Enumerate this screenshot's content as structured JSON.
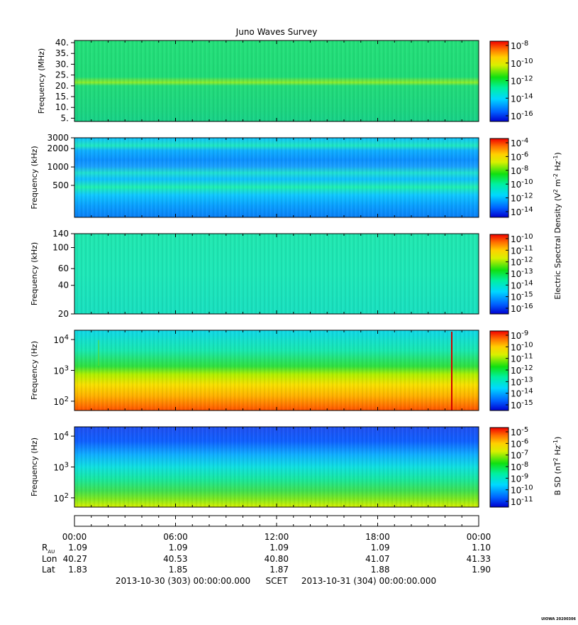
{
  "title": "Juno Waves Survey",
  "chart_data": [
    {
      "type": "heatmap",
      "ylabel": "Frequency (MHz)",
      "y_scale": "linear",
      "ylim": [
        3.5,
        41
      ],
      "y_ticks": [
        5,
        10,
        15,
        20,
        25,
        30,
        35,
        40
      ],
      "y_tick_labels": [
        "5.",
        "10.",
        "15.",
        "20.",
        "25.",
        "30.",
        "35.",
        "40."
      ],
      "colorbar_ticks": [
        {
          "base": "10",
          "exp": "-8"
        },
        {
          "base": "10",
          "exp": "-10"
        },
        {
          "base": "10",
          "exp": "-12"
        },
        {
          "base": "10",
          "exp": "-14"
        },
        {
          "base": "10",
          "exp": "-16"
        }
      ]
    },
    {
      "type": "heatmap",
      "ylabel": "Frequency (kHz)",
      "y_scale": "log",
      "ylim": [
        150,
        3000
      ],
      "y_ticks": [
        500,
        1000,
        2000,
        3000
      ],
      "y_tick_labels": [
        "500",
        "1000",
        "2000",
        "3000"
      ],
      "colorbar_ticks": [
        {
          "base": "10",
          "exp": "-4"
        },
        {
          "base": "10",
          "exp": "-6"
        },
        {
          "base": "10",
          "exp": "-8"
        },
        {
          "base": "10",
          "exp": "-10"
        },
        {
          "base": "10",
          "exp": "-12"
        },
        {
          "base": "10",
          "exp": "-14"
        }
      ]
    },
    {
      "type": "heatmap",
      "ylabel": "Frequency (kHz)",
      "y_scale": "log",
      "ylim": [
        20,
        140
      ],
      "y_ticks": [
        20,
        40,
        60,
        100,
        140
      ],
      "y_tick_labels": [
        "20",
        "40",
        "60",
        "100",
        "140"
      ],
      "colorbar_ticks": [
        {
          "base": "10",
          "exp": "-10"
        },
        {
          "base": "10",
          "exp": "-11"
        },
        {
          "base": "10",
          "exp": "-12"
        },
        {
          "base": "10",
          "exp": "-13"
        },
        {
          "base": "10",
          "exp": "-14"
        },
        {
          "base": "10",
          "exp": "-15"
        },
        {
          "base": "10",
          "exp": "-16"
        }
      ]
    },
    {
      "type": "heatmap",
      "ylabel": "Frequency (Hz)",
      "y_scale": "log",
      "ylim": [
        50,
        20000
      ],
      "y_ticks": [
        100,
        1000,
        10000
      ],
      "y_tick_labels": [
        {
          "base": "10",
          "exp": "2"
        },
        {
          "base": "10",
          "exp": "3"
        },
        {
          "base": "10",
          "exp": "4"
        }
      ],
      "colorbar_ticks": [
        {
          "base": "10",
          "exp": "-9"
        },
        {
          "base": "10",
          "exp": "-10"
        },
        {
          "base": "10",
          "exp": "-11"
        },
        {
          "base": "10",
          "exp": "-12"
        },
        {
          "base": "10",
          "exp": "-13"
        },
        {
          "base": "10",
          "exp": "-14"
        },
        {
          "base": "10",
          "exp": "-15"
        }
      ]
    },
    {
      "type": "heatmap",
      "ylabel": "Frequency (Hz)",
      "y_scale": "log",
      "ylim": [
        50,
        20000
      ],
      "y_ticks": [
        100,
        1000,
        10000
      ],
      "y_tick_labels": [
        {
          "base": "10",
          "exp": "2"
        },
        {
          "base": "10",
          "exp": "3"
        },
        {
          "base": "10",
          "exp": "4"
        }
      ],
      "colorbar_ticks": [
        {
          "base": "10",
          "exp": "-5"
        },
        {
          "base": "10",
          "exp": "-6"
        },
        {
          "base": "10",
          "exp": "-7"
        },
        {
          "base": "10",
          "exp": "-8"
        },
        {
          "base": "10",
          "exp": "-9"
        },
        {
          "base": "10",
          "exp": "-10"
        },
        {
          "base": "10",
          "exp": "-11"
        }
      ]
    }
  ],
  "colorbar_label_electric": {
    "prefix": "Electric Spectral Density (V",
    "sup1": "2",
    "mid": " m",
    "sup2": "-2",
    "mid2": " Hz",
    "sup3": "-1",
    "suffix": ")"
  },
  "colorbar_label_magnetic": {
    "prefix": "B SD (nT",
    "sup1": "2",
    "mid": " Hz",
    "sup2": "-1",
    "suffix": ")"
  },
  "time_axis": {
    "ticks": [
      "00:00",
      "06:00",
      "12:00",
      "18:00",
      "00:00"
    ]
  },
  "ephemeris": {
    "rows": [
      {
        "label": "R",
        "label_sub": "AU",
        "values": [
          "1.09",
          "1.09",
          "1.09",
          "1.09",
          "1.10"
        ]
      },
      {
        "label": "Lon",
        "label_sub": "",
        "values": [
          "40.27",
          "40.53",
          "40.80",
          "41.07",
          "41.33"
        ]
      },
      {
        "label": "Lat",
        "label_sub": "",
        "values": [
          "1.83",
          "1.85",
          "1.87",
          "1.88",
          "1.90"
        ]
      }
    ]
  },
  "time_range": {
    "start": "2013-10-30 (303) 00:00:00.000",
    "label": "SCET",
    "end": "2013-10-31 (304) 00:00:00.000"
  },
  "footer": "UIOWA 20200306"
}
